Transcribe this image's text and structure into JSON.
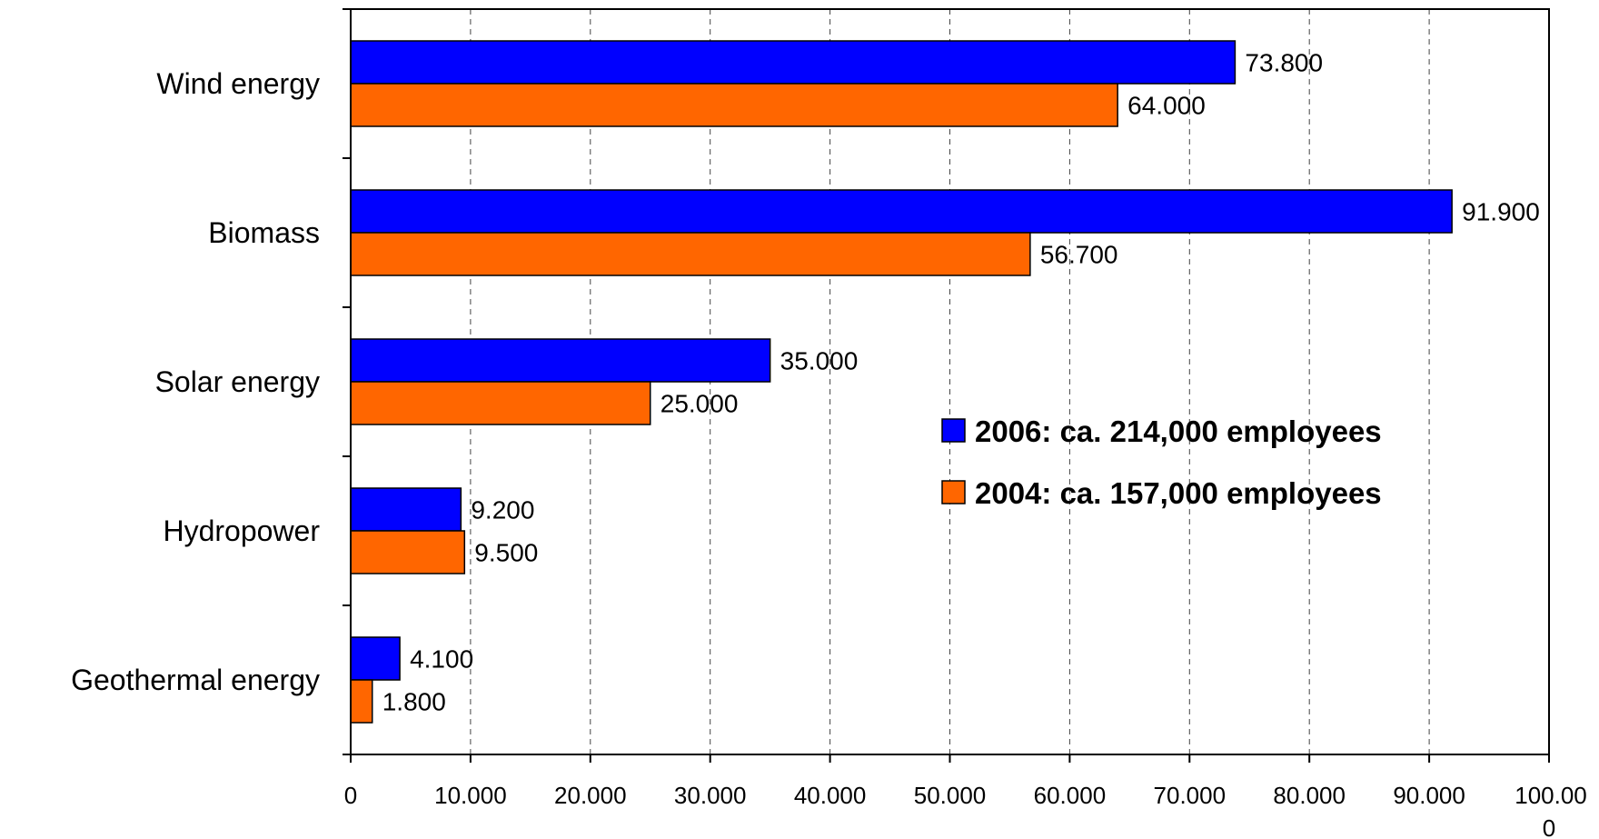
{
  "chart_data": {
    "type": "bar",
    "orientation": "horizontal",
    "categories": [
      "Wind energy",
      "Biomass",
      "Solar energy",
      "Hydropower",
      "Geothermal energy"
    ],
    "series": [
      {
        "name": "2006: ca. 214,000 employees",
        "color": "#0000ff",
        "values": [
          73800,
          91900,
          35000,
          9200,
          4100
        ],
        "value_labels": [
          "73.800",
          "91.900",
          "35.000",
          "9.200",
          "4.100"
        ]
      },
      {
        "name": "2004: ca. 157,000 employees",
        "color": "#ff6600",
        "values": [
          64000,
          56700,
          25000,
          9500,
          1800
        ],
        "value_labels": [
          "64.000",
          "56.700",
          "25.000",
          "9.500",
          "1.800"
        ]
      }
    ],
    "x_ticks": [
      "0",
      "10.000",
      "20.000",
      "30.000",
      "40.000",
      "50.000",
      "60.000",
      "70.000",
      "80.000",
      "90.000",
      "100.000"
    ],
    "xlim": [
      0,
      100000
    ],
    "title": "",
    "xlabel": "",
    "ylabel": "",
    "grid": "vertical-dashed",
    "legend_position": "center-right"
  }
}
